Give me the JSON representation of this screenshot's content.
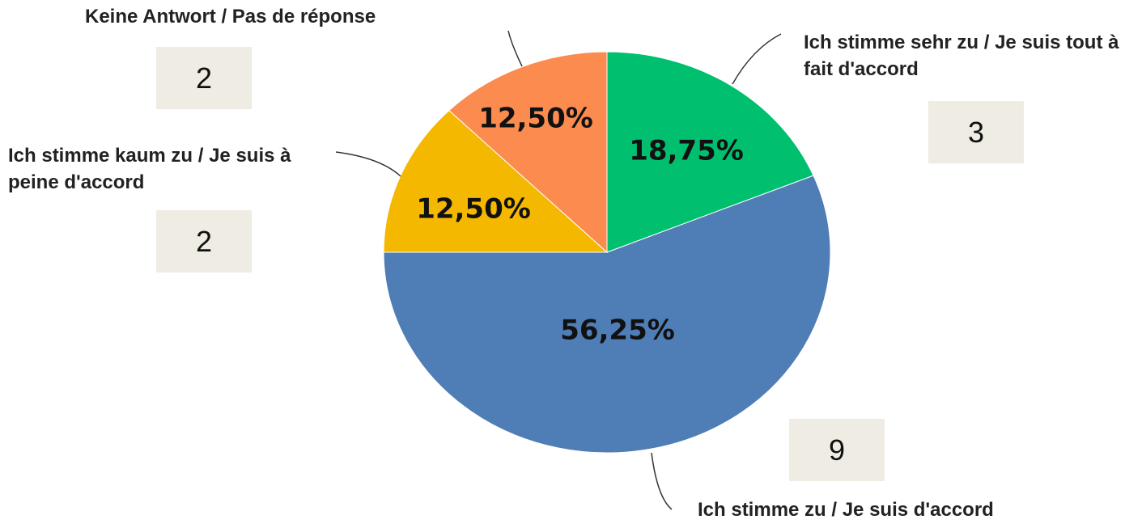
{
  "chart_data": {
    "type": "pie",
    "categories": [
      "Ich stimme sehr zu / Je suis tout à fait d'accord",
      "Ich stimme zu / Je suis d'accord",
      "Ich stimme kaum zu / Je suis à peine d'accord",
      "Keine Antwort / Pas de réponse"
    ],
    "values": [
      18.75,
      56.25,
      12.5,
      12.5
    ],
    "value_labels": [
      "18,75%",
      "56,25%",
      "12,50%",
      "12,50%"
    ],
    "counts": [
      3,
      9,
      2,
      2
    ],
    "colors": [
      "#00bf6f",
      "#4f7db6",
      "#f5b800",
      "#fb8b4e"
    ]
  }
}
